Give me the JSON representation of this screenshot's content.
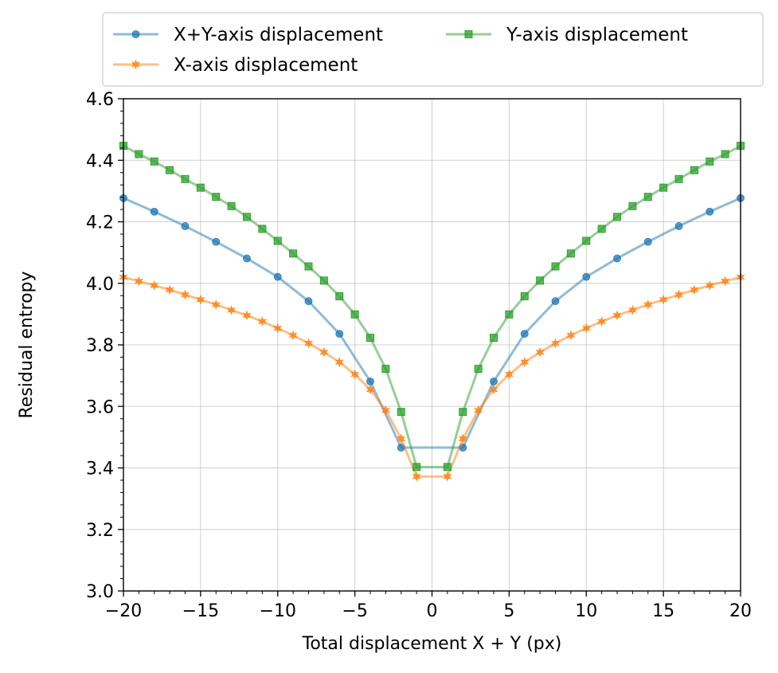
{
  "chart_data": {
    "type": "line",
    "xlabel": "Total displacement X + Y (px)",
    "ylabel": "Residual entropy",
    "xlim": [
      -20,
      20
    ],
    "ylim": [
      3.0,
      4.6
    ],
    "xticks": [
      -20,
      -15,
      -10,
      -5,
      0,
      5,
      10,
      15,
      20
    ],
    "xtick_labels": [
      "−20",
      "−15",
      "−10",
      "−5",
      "0",
      "5",
      "10",
      "15",
      "20"
    ],
    "yticks": [
      3.0,
      3.2,
      3.4,
      3.6,
      3.8,
      4.0,
      4.2,
      4.4,
      4.6
    ],
    "ytick_labels": [
      "3.0",
      "3.2",
      "3.4",
      "3.6",
      "3.8",
      "4.0",
      "4.2",
      "4.4",
      "4.6"
    ],
    "grid": true,
    "legend_position": "top",
    "series": [
      {
        "name": "X+Y-axis displacement",
        "color": "#1f77b4",
        "marker": "circle",
        "x": [
          -20,
          -18,
          -16,
          -14,
          -12,
          -10,
          -8,
          -6,
          -4,
          -2,
          2,
          4,
          6,
          8,
          10,
          12,
          14,
          16,
          18,
          20
        ],
        "y": [
          4.277,
          4.233,
          4.186,
          4.135,
          4.081,
          4.021,
          3.942,
          3.836,
          3.681,
          3.466,
          3.466,
          3.681,
          3.836,
          3.942,
          4.021,
          4.081,
          4.135,
          4.186,
          4.233,
          4.277
        ]
      },
      {
        "name": "X-axis displacement",
        "color": "#ff7f0e",
        "marker": "star",
        "x": [
          -20,
          -19,
          -18,
          -17,
          -16,
          -15,
          -14,
          -13,
          -12,
          -11,
          -10,
          -9,
          -8,
          -7,
          -6,
          -5,
          -4,
          -3,
          -2,
          -1,
          1,
          2,
          3,
          4,
          5,
          6,
          7,
          8,
          9,
          10,
          11,
          12,
          13,
          14,
          15,
          16,
          17,
          18,
          19,
          20
        ],
        "y": [
          4.02,
          4.007,
          3.993,
          3.979,
          3.963,
          3.947,
          3.931,
          3.913,
          3.896,
          3.876,
          3.854,
          3.831,
          3.805,
          3.776,
          3.744,
          3.704,
          3.655,
          3.587,
          3.495,
          3.372,
          3.372,
          3.495,
          3.587,
          3.655,
          3.704,
          3.744,
          3.776,
          3.805,
          3.831,
          3.854,
          3.876,
          3.896,
          3.913,
          3.931,
          3.947,
          3.963,
          3.979,
          3.993,
          4.007,
          4.02
        ]
      },
      {
        "name": "Y-axis displacement",
        "color": "#2ca02c",
        "marker": "square",
        "x": [
          -20,
          -19,
          -18,
          -17,
          -16,
          -15,
          -14,
          -13,
          -12,
          -11,
          -10,
          -9,
          -8,
          -7,
          -6,
          -5,
          -4,
          -3,
          -2,
          -1,
          1,
          2,
          3,
          4,
          5,
          6,
          7,
          8,
          9,
          10,
          11,
          12,
          13,
          14,
          15,
          16,
          17,
          18,
          19,
          20
        ],
        "y": [
          4.447,
          4.42,
          4.396,
          4.368,
          4.339,
          4.311,
          4.281,
          4.251,
          4.216,
          4.177,
          4.138,
          4.097,
          4.055,
          4.009,
          3.958,
          3.899,
          3.823,
          3.722,
          3.582,
          3.403,
          3.403,
          3.582,
          3.722,
          3.823,
          3.899,
          3.958,
          4.009,
          4.055,
          4.097,
          4.138,
          4.177,
          4.216,
          4.251,
          4.281,
          4.311,
          4.339,
          4.368,
          4.396,
          4.42,
          4.447
        ]
      }
    ]
  }
}
